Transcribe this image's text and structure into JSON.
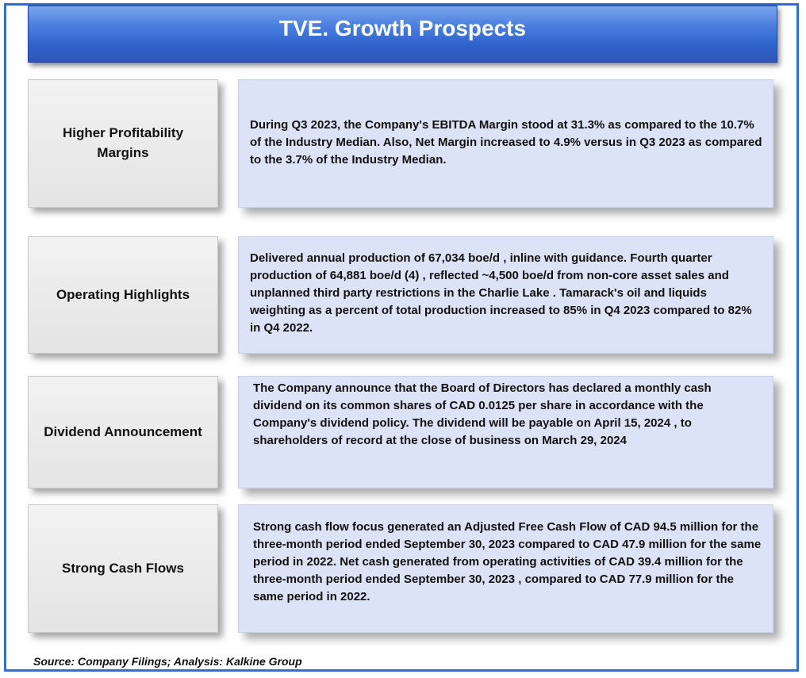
{
  "title": "TVE. Growth Prospects",
  "rows": [
    {
      "label": "Higher Profitability Margins",
      "description": "During Q3 2023, the Company's EBITDA Margin stood at 31.3% as compared to the 10.7% of the Industry Median. Also, Net Margin increased to 4.9% versus  in Q3 2023 as compared to the 3.7% of the Industry Median."
    },
    {
      "label": "Operating Highlights",
      "description": "Delivered annual production of 67,034 boe/d , inline with guidance. Fourth quarter production of 64,881 boe/d (4) , reflected ~4,500 boe/d  from non-core asset sales and unplanned third party restrictions in the Charlie Lake . Tamarack's oil and liquids weighting as a percent of total production increased to 85% in Q4 2023 compared to 82% in Q4 2022."
    },
    {
      "label": "Dividend Announcement",
      "description": "The Company announce that the Board of Directors has declared a monthly cash dividend on its common shares of CAD 0.0125 per share in accordance with the Company's dividend policy. The dividend will be payable on April 15, 2024 , to shareholders of record at the close of business on March 29, 2024"
    },
    {
      "label": "Strong Cash Flows",
      "description": "Strong cash flow focus generated an Adjusted Free Cash Flow  of  CAD 94.5 million for the three-month period ended September 30, 2023 compared to   CAD 47.9 million for the same period in 2022. Net cash generated from operating activities  of  CAD 39.4 million for the three-month period ended September 30, 2023 , compared to  CAD 77.9 million for the same period in 2022."
    }
  ],
  "source": "Source: Company Filings; Analysis: Kalkine Group"
}
